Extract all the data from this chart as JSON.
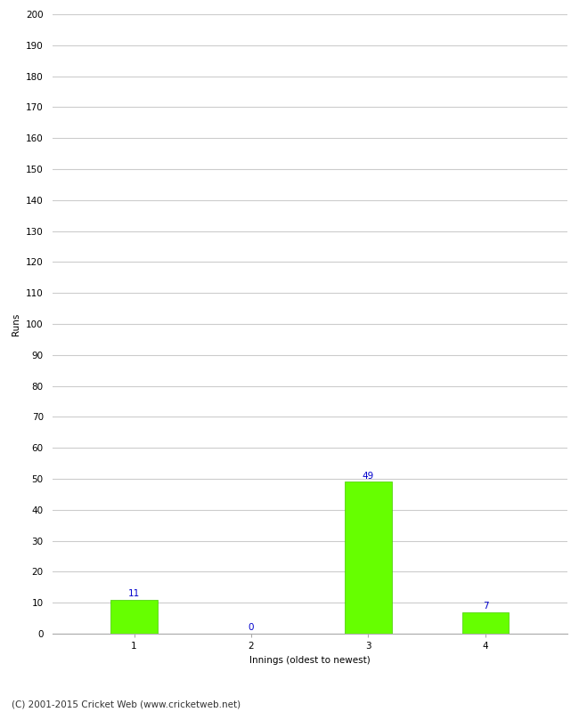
{
  "categories": [
    "1",
    "2",
    "3",
    "4"
  ],
  "values": [
    11,
    0,
    49,
    7
  ],
  "bar_color": "#66ff00",
  "bar_edge_color": "#44cc00",
  "xlabel": "Innings (oldest to newest)",
  "ylabel": "Runs",
  "ylim": [
    0,
    200
  ],
  "yticks": [
    0,
    10,
    20,
    30,
    40,
    50,
    60,
    70,
    80,
    90,
    100,
    110,
    120,
    130,
    140,
    150,
    160,
    170,
    180,
    190,
    200
  ],
  "value_label_color": "#0000cc",
  "value_label_fontsize": 7.5,
  "tick_fontsize": 7.5,
  "footer_text": "(C) 2001-2015 Cricket Web (www.cricketweb.net)",
  "footer_fontsize": 7.5,
  "background_color": "#ffffff",
  "grid_color": "#cccccc",
  "ylabel_fontsize": 7.5,
  "xlabel_fontsize": 7.5,
  "bar_width": 0.4
}
